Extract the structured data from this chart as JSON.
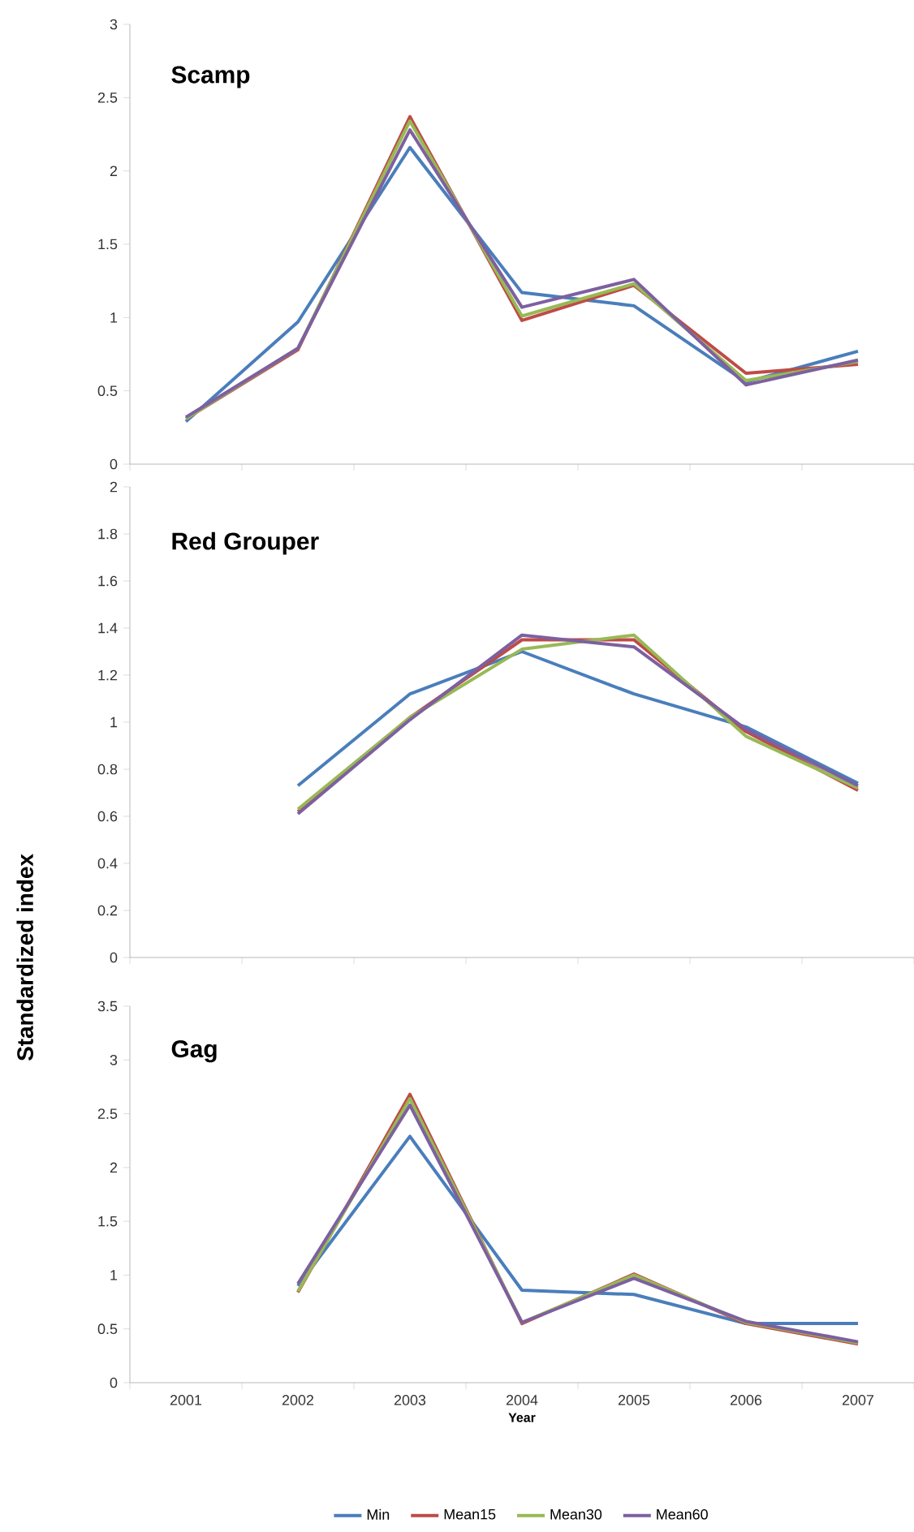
{
  "chart_data": [
    {
      "type": "line",
      "title": "Scamp",
      "categories": [
        "2001",
        "2002",
        "2003",
        "2004",
        "2005",
        "2006",
        "2007"
      ],
      "ylim": [
        0,
        3
      ],
      "yticks": [
        0,
        0.5,
        1,
        1.5,
        2,
        2.5,
        3
      ],
      "grid": false,
      "legend": false,
      "tick_labels": "y",
      "marker": "none",
      "line_style": "solid",
      "series": [
        {
          "color": "#4a7ebb",
          "values": [
            0.29,
            0.97,
            2.16,
            1.17,
            1.08,
            0.56,
            0.77
          ]
        },
        {
          "color": "#be4b48",
          "values": [
            0.31,
            0.78,
            2.37,
            0.98,
            1.22,
            0.62,
            0.68
          ]
        },
        {
          "color": "#98b954",
          "values": [
            0.31,
            0.79,
            2.34,
            1.01,
            1.23,
            0.57,
            0.7
          ]
        },
        {
          "color": "#7d60a0",
          "values": [
            0.32,
            0.79,
            2.28,
            1.07,
            1.26,
            0.54,
            0.71
          ]
        }
      ]
    },
    {
      "type": "line",
      "title": "Red Grouper",
      "ylabel": "Standardized index",
      "categories": [
        "2001",
        "2002",
        "2003",
        "2004",
        "2005",
        "2006",
        "2007"
      ],
      "ylim": [
        0,
        2
      ],
      "yticks": [
        0,
        0.2,
        0.4,
        0.6,
        0.8,
        1,
        1.2,
        1.4,
        1.6,
        1.8,
        2
      ],
      "grid": false,
      "legend": false,
      "tick_labels": "y",
      "marker": "none",
      "line_style": "solid",
      "series": [
        {
          "color": "#4a7ebb",
          "values": [
            null,
            0.73,
            1.12,
            1.3,
            1.12,
            0.98,
            0.74
          ]
        },
        {
          "color": "#be4b48",
          "values": [
            null,
            0.62,
            1.02,
            1.35,
            1.35,
            0.96,
            0.71
          ]
        },
        {
          "color": "#98b954",
          "values": [
            null,
            0.63,
            1.02,
            1.31,
            1.37,
            0.94,
            0.72
          ]
        },
        {
          "color": "#7d60a0",
          "values": [
            null,
            0.61,
            1.01,
            1.37,
            1.32,
            0.97,
            0.73
          ]
        }
      ]
    },
    {
      "type": "line",
      "title": "Gag",
      "xlabel": "Year",
      "categories": [
        "2001",
        "2002",
        "2003",
        "2004",
        "2005",
        "2006",
        "2007"
      ],
      "ylim": [
        0,
        3.5
      ],
      "yticks": [
        0,
        0.5,
        1,
        1.5,
        2,
        2.5,
        3,
        3.5
      ],
      "grid": false,
      "legend": "bottom",
      "marker": "none",
      "line_style": "solid",
      "series": [
        {
          "name": "Min",
          "color": "#4a7ebb",
          "values": [
            null,
            0.9,
            2.29,
            0.86,
            0.82,
            0.55,
            0.55
          ]
        },
        {
          "name": "Mean15",
          "color": "#be4b48",
          "values": [
            null,
            0.84,
            2.68,
            0.55,
            1.01,
            0.55,
            0.36
          ]
        },
        {
          "name": "Mean30",
          "color": "#98b954",
          "values": [
            null,
            0.85,
            2.64,
            0.56,
            1.0,
            0.56,
            0.37
          ]
        },
        {
          "name": "Mean60",
          "color": "#7d60a0",
          "values": [
            null,
            0.92,
            2.58,
            0.56,
            0.97,
            0.57,
            0.38
          ]
        }
      ]
    }
  ]
}
